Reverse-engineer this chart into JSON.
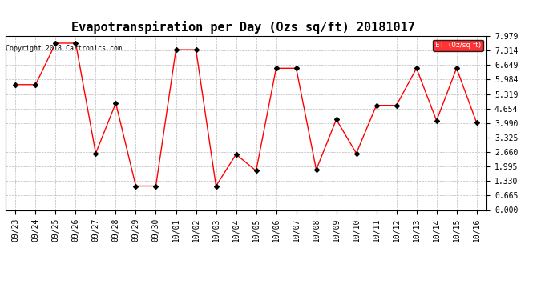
{
  "title": "Evapotranspiration per Day (Ozs sq/ft) 20181017",
  "copyright": "Copyright 2018 Cartronics.com",
  "legend_label": "ET  (0z/sq ft)",
  "x_labels": [
    "09/23",
    "09/24",
    "09/25",
    "09/26",
    "09/27",
    "09/28",
    "09/29",
    "09/30",
    "10/01",
    "10/02",
    "10/03",
    "10/04",
    "10/05",
    "10/06",
    "10/07",
    "10/08",
    "10/09",
    "10/10",
    "10/11",
    "10/12",
    "10/13",
    "10/14",
    "10/15",
    "10/16"
  ],
  "y_values": [
    5.75,
    5.75,
    7.65,
    7.65,
    2.6,
    4.9,
    1.1,
    1.1,
    7.35,
    7.35,
    1.1,
    2.55,
    1.8,
    6.5,
    6.5,
    1.85,
    4.15,
    2.6,
    4.8,
    4.8,
    6.5,
    4.1,
    6.5,
    4.0
  ],
  "y_ticks": [
    0.0,
    0.665,
    1.33,
    1.995,
    2.66,
    3.325,
    3.99,
    4.654,
    5.319,
    5.984,
    6.649,
    7.314,
    7.979
  ],
  "y_min": 0.0,
  "y_max": 7.979,
  "line_color": "red",
  "marker_color": "black",
  "marker_size": 3,
  "bg_color": "white",
  "grid_color": "#bbbbbb",
  "legend_bg": "red",
  "legend_text_color": "white",
  "title_fontsize": 11,
  "copyright_fontsize": 6,
  "tick_fontsize": 7
}
